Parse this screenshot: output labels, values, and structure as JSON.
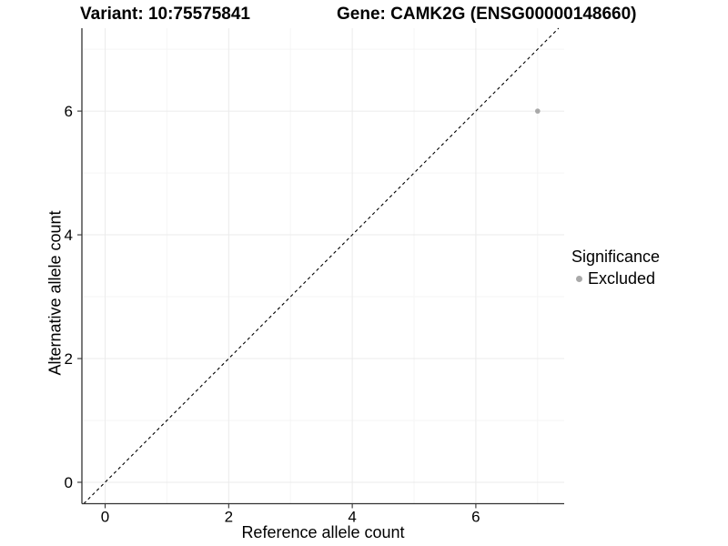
{
  "chart_data": {
    "type": "scatter",
    "title_left": "Variant: 10:75575841",
    "title_right": "Gene: CAMK2G (ENSG00000148660)",
    "xlabel": "Reference allele count",
    "ylabel": "Alternative allele count",
    "xlim": [
      -0.376,
      7.43
    ],
    "ylim": [
      -0.346,
      7.34
    ],
    "x_major_ticks": [
      0,
      2,
      4,
      6
    ],
    "y_major_ticks": [
      0,
      2,
      4,
      6
    ],
    "x_minor_ticks": [
      1,
      3,
      5,
      7
    ],
    "y_minor_ticks": [
      1,
      3,
      5,
      7
    ],
    "grid": "major+minor",
    "points": [
      {
        "x": 7,
        "y": 6,
        "series": "Excluded"
      }
    ],
    "reference_line": {
      "kind": "identity",
      "slope": 1,
      "intercept": 0,
      "style": "dashed",
      "color": "#000000"
    },
    "legend": {
      "title": "Significance",
      "position": "right",
      "items": [
        {
          "label": "Excluded",
          "color": "#a9a9a9"
        }
      ]
    },
    "colors": {
      "grid_major": "#ebebeb",
      "grid_minor": "#f5f5f5",
      "axis_line": "#333333",
      "tick_mark": "#333333",
      "point": "#a9a9a9",
      "text": "#000000",
      "background": "#ffffff"
    }
  }
}
